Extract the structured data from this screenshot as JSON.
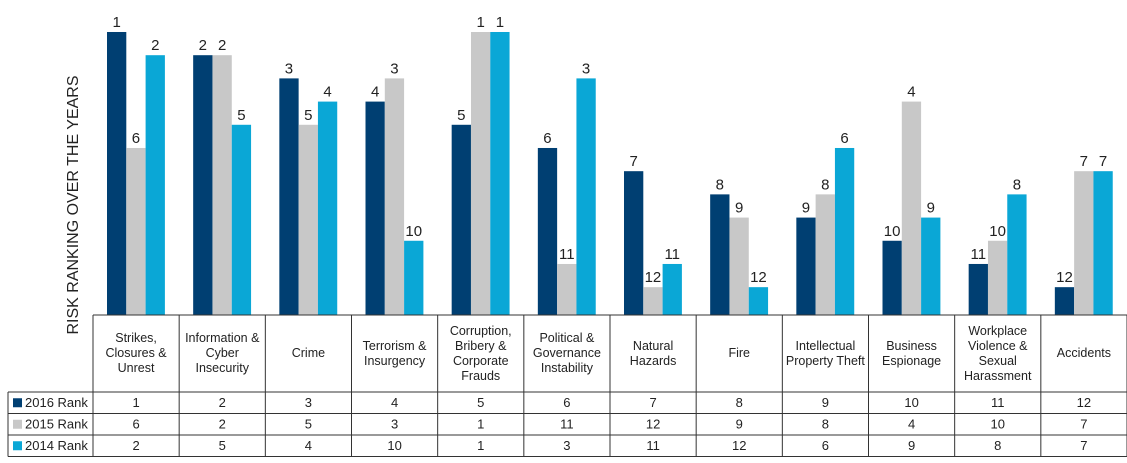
{
  "chart_data": {
    "type": "bar",
    "y_axis_label": "RISK RANKING OVER THE YEARS",
    "categories": [
      "Strikes, Closures & Unrest",
      "Information & Cyber Insecurity",
      "Crime",
      "Terrorism & Insurgency",
      "Corruption, Bribery & Corporate Frauds",
      "Political & Governance Instability",
      "Natural Hazards",
      "Fire",
      "Intellectual Property Theft",
      "Business Espionage",
      "Workplace Violence & Sexual Harassment",
      "Accidents"
    ],
    "series": [
      {
        "name": "2016 Rank",
        "color": "#003f72",
        "values": [
          1,
          2,
          3,
          4,
          5,
          6,
          7,
          8,
          9,
          10,
          11,
          12
        ]
      },
      {
        "name": "2015 Rank",
        "color": "#c8c8c8",
        "values": [
          6,
          2,
          5,
          3,
          1,
          11,
          12,
          9,
          8,
          4,
          10,
          7
        ]
      },
      {
        "name": "2014 Rank",
        "color": "#0aa7d6",
        "values": [
          2,
          5,
          4,
          10,
          1,
          3,
          11,
          12,
          6,
          9,
          8,
          7
        ]
      }
    ],
    "ylim": [
      13.2,
      0
    ]
  }
}
